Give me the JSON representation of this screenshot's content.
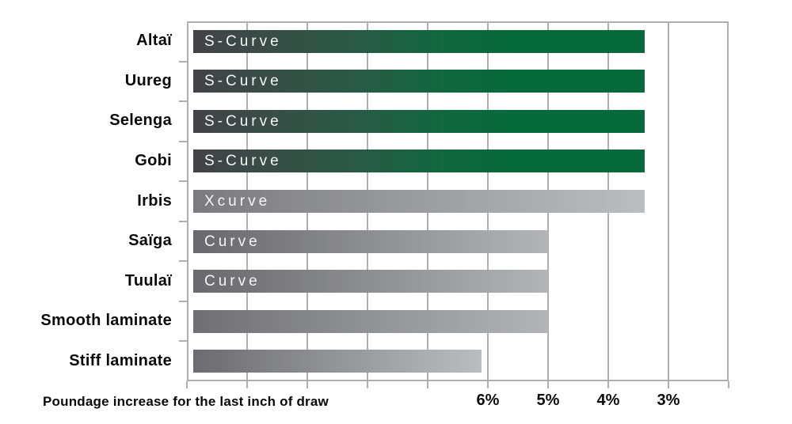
{
  "chart_data": {
    "type": "bar",
    "orientation": "horizontal",
    "title": "",
    "xlabel": "Poundage increase for the last inch of draw",
    "x_axis": {
      "reversed": true,
      "left_value": 11,
      "right_value": 2,
      "gridline_step_percent": 1,
      "grid": true,
      "labeled_ticks": [
        {
          "value": 6,
          "label": "6%"
        },
        {
          "value": 5,
          "label": "5%"
        },
        {
          "value": 4,
          "label": "4%"
        },
        {
          "value": 3,
          "label": "3%"
        }
      ]
    },
    "legend": false,
    "bars": [
      {
        "category": "Altaï",
        "value": 3.4,
        "label": "S-Curve",
        "style": "green"
      },
      {
        "category": "Uureg",
        "value": 3.4,
        "label": "S-Curve",
        "style": "green"
      },
      {
        "category": "Selenga",
        "value": 3.4,
        "label": "S-Curve",
        "style": "green"
      },
      {
        "category": "Gobi",
        "value": 3.4,
        "label": "S-Curve",
        "style": "green"
      },
      {
        "category": "Irbis",
        "value": 3.4,
        "label": "Xcurve",
        "style": "xcurve"
      },
      {
        "category": "Saïga",
        "value": 5.0,
        "label": "Curve",
        "style": "curve"
      },
      {
        "category": "Tuulaï",
        "value": 5.0,
        "label": "Curve",
        "style": "curve"
      },
      {
        "category": "Smooth laminate",
        "value": 5.0,
        "label": "",
        "style": "smooth"
      },
      {
        "category": "Stiff laminate",
        "value": 6.1,
        "label": "",
        "style": "stiff"
      }
    ]
  },
  "colors": {
    "gridline": "#aeaeb2",
    "text": "#0a0a0a",
    "bar_text": "#f5f5f5",
    "styles": {
      "green": [
        [
          "#424246",
          0
        ],
        [
          "#3a4c46",
          15
        ],
        [
          "#2a5946",
          35
        ],
        [
          "#106740",
          55
        ],
        [
          "#076a3a",
          70
        ],
        [
          "#076a3a",
          100
        ]
      ],
      "xcurve": [
        [
          "#7b7b7f",
          0
        ],
        [
          "#bcbdc1",
          100
        ]
      ],
      "curve": [
        [
          "#69696d",
          0
        ],
        [
          "#b3b4b8",
          100
        ]
      ],
      "smooth": [
        [
          "#707074",
          0
        ],
        [
          "#b3b4b8",
          100
        ]
      ],
      "stiff": [
        [
          "#6c6c70",
          0
        ],
        [
          "#bcbdc1",
          100
        ]
      ]
    }
  }
}
